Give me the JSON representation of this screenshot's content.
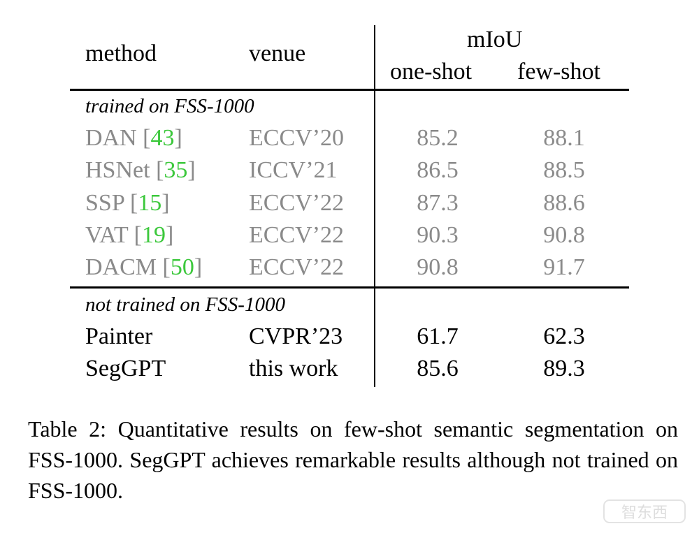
{
  "table": {
    "headers": {
      "method": "method",
      "venue": "venue",
      "metric": "mIoU",
      "one_shot": "one-shot",
      "few_shot": "few-shot"
    },
    "groups": [
      {
        "label": "trained on FSS-1000",
        "rows": [
          {
            "method": "DAN",
            "ref": "43",
            "venue": "ECCV’20",
            "one_shot": "85.2",
            "few_shot": "88.1"
          },
          {
            "method": "HSNet",
            "ref": "35",
            "venue": "ICCV’21",
            "one_shot": "86.5",
            "few_shot": "88.5"
          },
          {
            "method": "SSP",
            "ref": "15",
            "venue": "ECCV’22",
            "one_shot": "87.3",
            "few_shot": "88.6"
          },
          {
            "method": "VAT",
            "ref": "19",
            "venue": "ECCV’22",
            "one_shot": "90.3",
            "few_shot": "90.8"
          },
          {
            "method": "DACM",
            "ref": "50",
            "venue": "ECCV’22",
            "one_shot": "90.8",
            "few_shot": "91.7"
          }
        ]
      },
      {
        "label": "not trained on FSS-1000",
        "rows": [
          {
            "method": "Painter",
            "venue": "CVPR’23",
            "one_shot": "61.7",
            "few_shot": "62.3"
          },
          {
            "method": "SegGPT",
            "venue": "this work",
            "one_shot": "85.6",
            "few_shot": "89.3"
          }
        ]
      }
    ]
  },
  "caption": "Table 2: Quantitative results on few-shot semantic segmentation on FSS-1000. SegGPT achieves remarkable results although not trained on FSS-1000.",
  "colors": {
    "reference_link": "#3cc83c",
    "baseline_text": "#8a8a8a",
    "text": "#000000"
  },
  "watermark": "智东西"
}
